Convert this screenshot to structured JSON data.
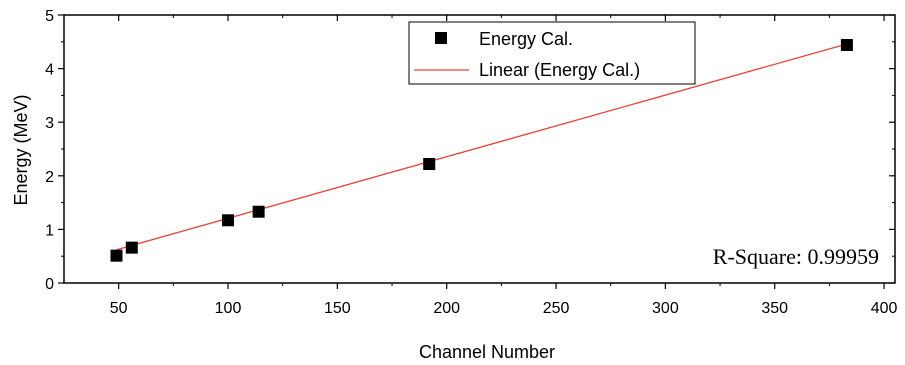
{
  "chart_data": {
    "type": "scatter",
    "title": "",
    "xlabel": "Channel Number",
    "ylabel": "Energy (MeV)",
    "xlim": [
      25,
      405
    ],
    "ylim": [
      0,
      5
    ],
    "xticks": [
      50,
      100,
      150,
      200,
      250,
      300,
      350,
      400
    ],
    "yticks": [
      0,
      1,
      2,
      3,
      4,
      5
    ],
    "grid": false,
    "legend_position": "top-center",
    "series": [
      {
        "name": "Energy Cal.",
        "kind": "scatter",
        "marker": "square",
        "color": "#000000",
        "x": [
          49,
          56,
          100,
          114,
          192,
          383
        ],
        "y": [
          0.51,
          0.66,
          1.17,
          1.33,
          2.22,
          4.44
        ]
      },
      {
        "name": "Linear (Energy Cal.)",
        "kind": "line",
        "color": "#e8413a",
        "x": [
          49,
          383
        ],
        "y": [
          0.62,
          4.46
        ]
      }
    ],
    "annotations": [
      {
        "text": "R-Square: 0.99959"
      }
    ]
  }
}
